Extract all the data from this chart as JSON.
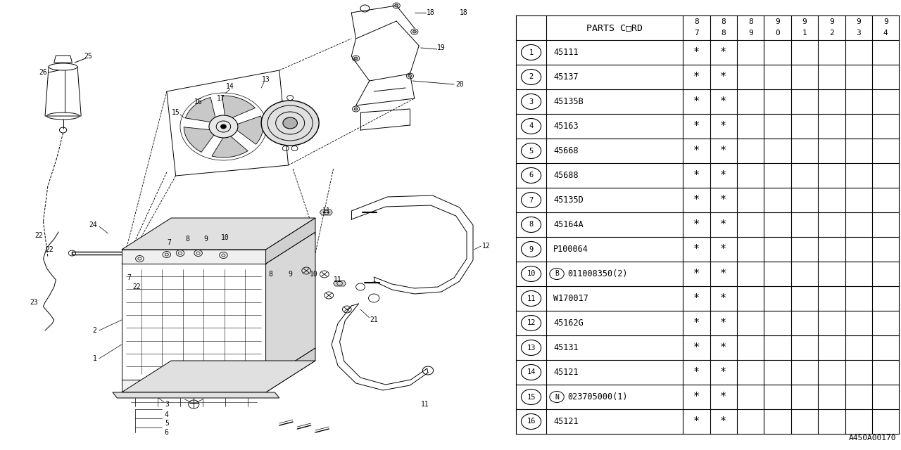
{
  "bg_color": "#ffffff",
  "diagram_color": "#000000",
  "ref_code": "A450A00170",
  "rows": [
    [
      "1",
      "45111",
      "*",
      "*",
      "",
      "",
      "",
      "",
      "",
      ""
    ],
    [
      "2",
      "45137",
      "*",
      "*",
      "",
      "",
      "",
      "",
      "",
      ""
    ],
    [
      "3",
      "45135B",
      "*",
      "*",
      "",
      "",
      "",
      "",
      "",
      ""
    ],
    [
      "4",
      "45163",
      "*",
      "*",
      "",
      "",
      "",
      "",
      "",
      ""
    ],
    [
      "5",
      "45668",
      "*",
      "*",
      "",
      "",
      "",
      "",
      "",
      ""
    ],
    [
      "6",
      "45688",
      "*",
      "*",
      "",
      "",
      "",
      "",
      "",
      ""
    ],
    [
      "7",
      "45135D",
      "*",
      "*",
      "",
      "",
      "",
      "",
      "",
      ""
    ],
    [
      "8",
      "45164A",
      "*",
      "*",
      "",
      "",
      "",
      "",
      "",
      ""
    ],
    [
      "9",
      "P100064",
      "*",
      "*",
      "",
      "",
      "",
      "",
      "",
      ""
    ],
    [
      "10",
      "B",
      "011008350(2)",
      "*",
      "*",
      "",
      "",
      "",
      "",
      ""
    ],
    [
      "11",
      "W170017",
      "*",
      "*",
      "",
      "",
      "",
      "",
      "",
      ""
    ],
    [
      "12",
      "45162G",
      "*",
      "*",
      "",
      "",
      "",
      "",
      "",
      ""
    ],
    [
      "13",
      "45131",
      "*",
      "*",
      "",
      "",
      "",
      "",
      "",
      ""
    ],
    [
      "14",
      "45121",
      "*",
      "*",
      "",
      "",
      "",
      "",
      "",
      ""
    ],
    [
      "15",
      "N",
      "023705000(1)",
      "*",
      "*",
      "",
      "",
      "",
      "",
      ""
    ],
    [
      "16",
      "45121",
      "*",
      "*",
      "",
      "",
      "",
      "",
      "",
      ""
    ]
  ],
  "year_headers": [
    [
      "8",
      "7"
    ],
    [
      "8",
      "8"
    ],
    [
      "8",
      "9"
    ],
    [
      "9",
      "0"
    ],
    [
      "9",
      "1"
    ],
    [
      "9",
      "2"
    ],
    [
      "9",
      "3"
    ],
    [
      "9",
      "4"
    ]
  ]
}
